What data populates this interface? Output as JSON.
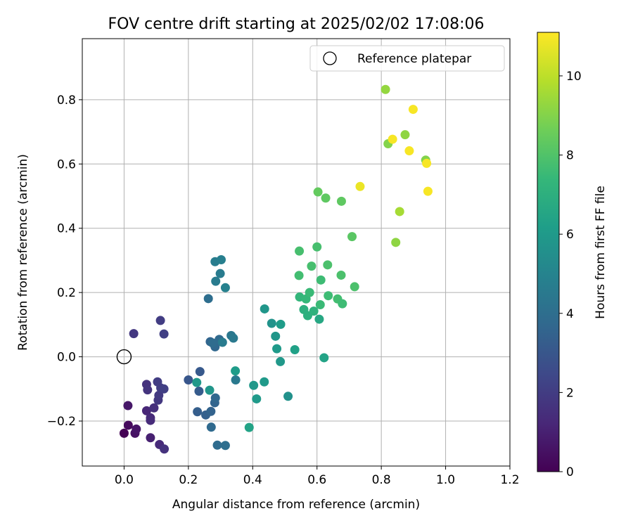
{
  "chart_data": {
    "type": "scatter",
    "title": "FOV centre drift starting at 2025/02/02 17:08:06",
    "xlabel": "Angular distance from reference (arcmin)",
    "ylabel": "Rotation from reference (arcmin)",
    "xlim": [
      -0.13,
      1.2
    ],
    "ylim": [
      -0.34,
      0.99
    ],
    "xticks": [
      0.0,
      0.2,
      0.4,
      0.6,
      0.8,
      1.0,
      1.2
    ],
    "xtick_labels": [
      "0.0",
      "0.2",
      "0.4",
      "0.6",
      "0.8",
      "1.0",
      "1.2"
    ],
    "yticks": [
      -0.2,
      0.0,
      0.2,
      0.4,
      0.6,
      0.8
    ],
    "ytick_labels": [
      "−0.2",
      "0.0",
      "0.2",
      "0.4",
      "0.6",
      "0.8"
    ],
    "grid": true,
    "legend": {
      "placement": "top-right",
      "entries": [
        {
          "label": "Reference platepar",
          "marker": "open-circle",
          "x": 0.0,
          "y": 0.0
        }
      ]
    },
    "colorbar": {
      "label": "Hours from first FF file",
      "colormap": "viridis",
      "range": [
        0,
        11.1
      ],
      "ticks": [
        0,
        2,
        4,
        6,
        8,
        10
      ],
      "tick_labels": [
        "0",
        "2",
        "4",
        "6",
        "8",
        "10"
      ]
    },
    "colormap_stops": [
      "#440154",
      "#482878",
      "#3e4989",
      "#31688e",
      "#26828e",
      "#1f9e89",
      "#35b779",
      "#6ece58",
      "#b5de2b",
      "#fde725"
    ],
    "points": [
      {
        "x": 0.0,
        "y": -0.238,
        "t": 0.0
      },
      {
        "x": 0.013,
        "y": -0.213,
        "t": 0.3
      },
      {
        "x": 0.034,
        "y": -0.238,
        "t": 0.5
      },
      {
        "x": 0.038,
        "y": -0.225,
        "t": 0.6
      },
      {
        "x": 0.012,
        "y": -0.152,
        "t": 0.7
      },
      {
        "x": 0.082,
        "y": -0.252,
        "t": 1.0
      },
      {
        "x": 0.11,
        "y": -0.273,
        "t": 1.3
      },
      {
        "x": 0.125,
        "y": -0.287,
        "t": 1.6
      },
      {
        "x": 0.07,
        "y": -0.168,
        "t": 1.2
      },
      {
        "x": 0.082,
        "y": -0.19,
        "t": 1.3
      },
      {
        "x": 0.082,
        "y": -0.198,
        "t": 1.4
      },
      {
        "x": 0.093,
        "y": -0.159,
        "t": 1.5
      },
      {
        "x": 0.07,
        "y": -0.086,
        "t": 1.6
      },
      {
        "x": 0.073,
        "y": -0.103,
        "t": 1.7
      },
      {
        "x": 0.106,
        "y": -0.135,
        "t": 1.8
      },
      {
        "x": 0.108,
        "y": -0.12,
        "t": 1.9
      },
      {
        "x": 0.114,
        "y": -0.097,
        "t": 2.0
      },
      {
        "x": 0.124,
        "y": -0.1,
        "t": 2.1
      },
      {
        "x": 0.104,
        "y": -0.078,
        "t": 2.0
      },
      {
        "x": 0.03,
        "y": 0.072,
        "t": 1.8
      },
      {
        "x": 0.113,
        "y": 0.113,
        "t": 2.0
      },
      {
        "x": 0.124,
        "y": 0.071,
        "t": 2.1
      },
      {
        "x": 0.2,
        "y": -0.072,
        "t": 3.0
      },
      {
        "x": 0.236,
        "y": -0.046,
        "t": 3.1
      },
      {
        "x": 0.233,
        "y": -0.107,
        "t": 3.2
      },
      {
        "x": 0.228,
        "y": -0.171,
        "t": 3.3
      },
      {
        "x": 0.254,
        "y": -0.181,
        "t": 3.4
      },
      {
        "x": 0.27,
        "y": -0.17,
        "t": 3.5
      },
      {
        "x": 0.282,
        "y": -0.143,
        "t": 3.6
      },
      {
        "x": 0.284,
        "y": -0.128,
        "t": 3.7
      },
      {
        "x": 0.271,
        "y": -0.219,
        "t": 3.8
      },
      {
        "x": 0.29,
        "y": -0.275,
        "t": 3.9
      },
      {
        "x": 0.315,
        "y": -0.276,
        "t": 4.0
      },
      {
        "x": 0.268,
        "y": 0.047,
        "t": 3.6
      },
      {
        "x": 0.283,
        "y": 0.031,
        "t": 3.7
      },
      {
        "x": 0.296,
        "y": 0.054,
        "t": 3.8
      },
      {
        "x": 0.275,
        "y": 0.043,
        "t": 3.9
      },
      {
        "x": 0.306,
        "y": 0.045,
        "t": 4.6
      },
      {
        "x": 0.333,
        "y": 0.066,
        "t": 4.4
      },
      {
        "x": 0.34,
        "y": 0.058,
        "t": 4.5
      },
      {
        "x": 0.347,
        "y": -0.072,
        "t": 4.5
      },
      {
        "x": 0.262,
        "y": 0.181,
        "t": 4.0
      },
      {
        "x": 0.285,
        "y": 0.235,
        "t": 4.6
      },
      {
        "x": 0.283,
        "y": 0.296,
        "t": 4.7
      },
      {
        "x": 0.302,
        "y": 0.302,
        "t": 4.8
      },
      {
        "x": 0.299,
        "y": 0.259,
        "t": 4.6
      },
      {
        "x": 0.315,
        "y": 0.215,
        "t": 4.9
      },
      {
        "x": 0.226,
        "y": -0.08,
        "t": 5.9
      },
      {
        "x": 0.266,
        "y": -0.104,
        "t": 5.8
      },
      {
        "x": 0.346,
        "y": -0.044,
        "t": 6.1
      },
      {
        "x": 0.389,
        "y": -0.22,
        "t": 6.4
      },
      {
        "x": 0.403,
        "y": -0.089,
        "t": 5.9
      },
      {
        "x": 0.412,
        "y": -0.131,
        "t": 6.0
      },
      {
        "x": 0.436,
        "y": -0.078,
        "t": 6.0
      },
      {
        "x": 0.437,
        "y": 0.149,
        "t": 5.8
      },
      {
        "x": 0.459,
        "y": 0.104,
        "t": 5.7
      },
      {
        "x": 0.471,
        "y": 0.064,
        "t": 5.8
      },
      {
        "x": 0.475,
        "y": 0.025,
        "t": 6.0
      },
      {
        "x": 0.487,
        "y": 0.101,
        "t": 6.1
      },
      {
        "x": 0.486,
        "y": -0.015,
        "t": 5.9
      },
      {
        "x": 0.51,
        "y": -0.123,
        "t": 5.6
      },
      {
        "x": 0.531,
        "y": 0.022,
        "t": 6.3
      },
      {
        "x": 0.622,
        "y": -0.003,
        "t": 6.4
      },
      {
        "x": 0.607,
        "y": 0.117,
        "t": 6.6
      },
      {
        "x": 0.571,
        "y": 0.128,
        "t": 7.0
      },
      {
        "x": 0.59,
        "y": 0.142,
        "t": 7.1
      },
      {
        "x": 0.559,
        "y": 0.147,
        "t": 7.0
      },
      {
        "x": 0.546,
        "y": 0.186,
        "t": 7.3
      },
      {
        "x": 0.566,
        "y": 0.18,
        "t": 7.4
      },
      {
        "x": 0.577,
        "y": 0.2,
        "t": 7.5
      },
      {
        "x": 0.61,
        "y": 0.162,
        "t": 7.5
      },
      {
        "x": 0.612,
        "y": 0.239,
        "t": 7.6
      },
      {
        "x": 0.635,
        "y": 0.19,
        "t": 7.6
      },
      {
        "x": 0.664,
        "y": 0.18,
        "t": 7.7
      },
      {
        "x": 0.679,
        "y": 0.165,
        "t": 7.6
      },
      {
        "x": 0.544,
        "y": 0.253,
        "t": 7.7
      },
      {
        "x": 0.545,
        "y": 0.329,
        "t": 7.8
      },
      {
        "x": 0.583,
        "y": 0.282,
        "t": 7.8
      },
      {
        "x": 0.633,
        "y": 0.286,
        "t": 7.9
      },
      {
        "x": 0.675,
        "y": 0.254,
        "t": 7.9
      },
      {
        "x": 0.717,
        "y": 0.218,
        "t": 7.9
      },
      {
        "x": 0.6,
        "y": 0.342,
        "t": 7.8
      },
      {
        "x": 0.709,
        "y": 0.374,
        "t": 8.2
      },
      {
        "x": 0.603,
        "y": 0.513,
        "t": 8.4
      },
      {
        "x": 0.627,
        "y": 0.494,
        "t": 8.3
      },
      {
        "x": 0.676,
        "y": 0.484,
        "t": 8.3
      },
      {
        "x": 0.734,
        "y": 0.53,
        "t": 10.8
      },
      {
        "x": 0.813,
        "y": 0.832,
        "t": 9.3
      },
      {
        "x": 0.821,
        "y": 0.663,
        "t": 9.0
      },
      {
        "x": 0.835,
        "y": 0.677,
        "t": 11.0
      },
      {
        "x": 0.874,
        "y": 0.691,
        "t": 9.2
      },
      {
        "x": 0.887,
        "y": 0.641,
        "t": 11.0
      },
      {
        "x": 0.899,
        "y": 0.77,
        "t": 11.0
      },
      {
        "x": 0.938,
        "y": 0.612,
        "t": 9.0
      },
      {
        "x": 0.941,
        "y": 0.602,
        "t": 11.0
      },
      {
        "x": 0.945,
        "y": 0.515,
        "t": 11.0
      },
      {
        "x": 0.845,
        "y": 0.356,
        "t": 9.2
      },
      {
        "x": 0.857,
        "y": 0.452,
        "t": 9.6
      }
    ]
  }
}
